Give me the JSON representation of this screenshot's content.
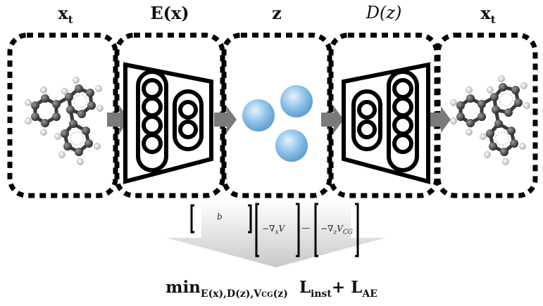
{
  "labels": {
    "input": {
      "main": "x",
      "sub": "t"
    },
    "encoder": "E(x)",
    "latent": "z",
    "decoder": "D(z)",
    "output": {
      "main": "x",
      "sub": "t"
    }
  },
  "matrix": {
    "top": "b",
    "left": {
      "pre": "−∇",
      "sub": "x",
      "post": "V"
    },
    "right": {
      "pre": "−∇",
      "sub": "z",
      "post": "V",
      "post_sub": "CG"
    },
    "dash": "—"
  },
  "objective": {
    "min": "min",
    "min_sub": "E(x),D(z),V",
    "min_sub_cg": "CG",
    "min_sub_tail": "(z)",
    "l_inst": "L",
    "l_inst_sub": "inst",
    "plus": "+",
    "l_ae": "L",
    "l_ae_sub": "AE"
  },
  "colors": {
    "frame": "#000000",
    "arrow": "#7a7a7a",
    "latent_ball": "#8fc3ea",
    "atom_carbon": "#3a3a3a",
    "atom_hydrogen": "#e8e8e8"
  }
}
